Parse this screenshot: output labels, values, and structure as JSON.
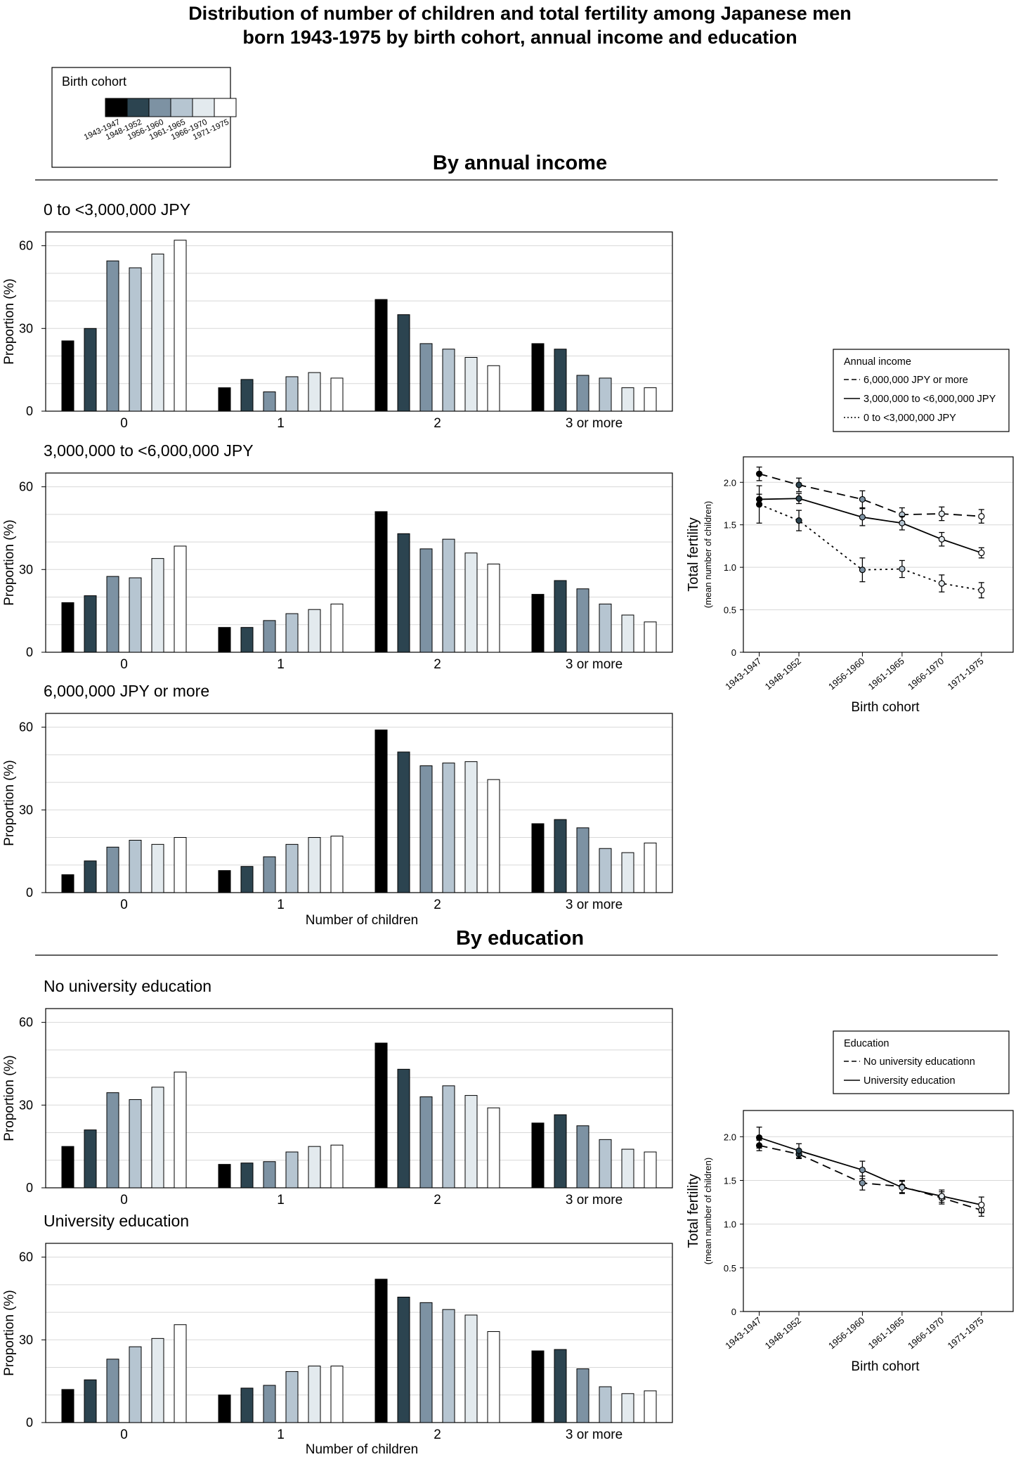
{
  "title_line1": "Distribution of number of children and total fertility among Japanese men",
  "title_line2": "born 1943-1975 by birth cohort, annual income and education",
  "legend": {
    "title": "Birth cohort",
    "cohorts": [
      "1943-1947",
      "1948-1952",
      "1956-1960",
      "1961-1965",
      "1966-1970",
      "1971-1975"
    ],
    "colors": [
      "#000000",
      "#2c4450",
      "#7d92a3",
      "#b6c5d1",
      "#e3eaee",
      "#ffffff"
    ]
  },
  "sections": {
    "income": "By annual income",
    "education": "By education"
  },
  "bar_panels": {
    "ylabel": "Proportion (%)",
    "xlabel": "Number of children",
    "yticks": [
      "0",
      "30",
      "60"
    ],
    "categories": [
      "0",
      "1",
      "2",
      "3 or more"
    ]
  },
  "line_panels": {
    "ylabel": "Total fertility",
    "ylabel_sub": "(mean number of children)",
    "xlabel": "Birth cohort",
    "yticks": [
      "0",
      "0.5",
      "1.0",
      "1.5",
      "2.0"
    ],
    "income_legend": {
      "title": "Annual income",
      "entries": [
        "6,000,000 JPY or more",
        "3,000,000 to <6,000,000 JPY",
        "0 to <3,000,000 JPY"
      ]
    },
    "education_legend": {
      "title": "Education",
      "entries": [
        "No university educationn",
        "University education"
      ]
    }
  },
  "chart_data": [
    {
      "type": "bar",
      "title": "0 to <3,000,000 JPY",
      "section": "By annual income",
      "categories": [
        "0",
        "1",
        "2",
        "3 or more"
      ],
      "ylim": [
        0,
        65
      ],
      "series": [
        {
          "name": "1943-1947",
          "values": [
            25.5,
            8.5,
            40.5,
            24.5
          ]
        },
        {
          "name": "1948-1952",
          "values": [
            30,
            11.5,
            35,
            22.5
          ]
        },
        {
          "name": "1956-1960",
          "values": [
            54.5,
            7,
            24.5,
            13
          ]
        },
        {
          "name": "1961-1965",
          "values": [
            52,
            12.5,
            22.5,
            12
          ]
        },
        {
          "name": "1966-1970",
          "values": [
            57,
            14,
            19.5,
            8.5
          ]
        },
        {
          "name": "1971-1975",
          "values": [
            62,
            12,
            16.5,
            8.5
          ]
        }
      ]
    },
    {
      "type": "bar",
      "title": "3,000,000 to <6,000,000 JPY",
      "section": "By annual income",
      "categories": [
        "0",
        "1",
        "2",
        "3 or more"
      ],
      "ylim": [
        0,
        65
      ],
      "series": [
        {
          "name": "1943-1947",
          "values": [
            18,
            9,
            51,
            21
          ]
        },
        {
          "name": "1948-1952",
          "values": [
            20.5,
            9,
            43,
            26
          ]
        },
        {
          "name": "1956-1960",
          "values": [
            27.5,
            11.5,
            37.5,
            23
          ]
        },
        {
          "name": "1961-1965",
          "values": [
            27,
            14,
            41,
            17.5
          ]
        },
        {
          "name": "1966-1970",
          "values": [
            34,
            15.5,
            36,
            13.5
          ]
        },
        {
          "name": "1971-1975",
          "values": [
            38.5,
            17.5,
            32,
            11
          ]
        }
      ]
    },
    {
      "type": "bar",
      "title": "6,000,000 JPY or more",
      "section": "By annual income",
      "categories": [
        "0",
        "1",
        "2",
        "3 or more"
      ],
      "ylim": [
        0,
        65
      ],
      "series": [
        {
          "name": "1943-1947",
          "values": [
            6.5,
            8,
            59,
            25
          ]
        },
        {
          "name": "1948-1952",
          "values": [
            11.5,
            9.5,
            51,
            26.5
          ]
        },
        {
          "name": "1956-1960",
          "values": [
            16.5,
            13,
            46,
            23.5
          ]
        },
        {
          "name": "1961-1965",
          "values": [
            19,
            17.5,
            47,
            16
          ]
        },
        {
          "name": "1966-1970",
          "values": [
            17.5,
            20,
            47.5,
            14.5
          ]
        },
        {
          "name": "1971-1975",
          "values": [
            20,
            20.5,
            41,
            18
          ]
        }
      ]
    },
    {
      "type": "bar",
      "title": "No university education",
      "section": "By education",
      "categories": [
        "0",
        "1",
        "2",
        "3 or more"
      ],
      "ylim": [
        0,
        65
      ],
      "series": [
        {
          "name": "1943-1947",
          "values": [
            15,
            8.5,
            52.5,
            23.5
          ]
        },
        {
          "name": "1948-1952",
          "values": [
            21,
            9,
            43,
            26.5
          ]
        },
        {
          "name": "1956-1960",
          "values": [
            34.5,
            9.5,
            33,
            22.5
          ]
        },
        {
          "name": "1961-1965",
          "values": [
            32,
            13,
            37,
            17.5
          ]
        },
        {
          "name": "1966-1970",
          "values": [
            36.5,
            15,
            33.5,
            14
          ]
        },
        {
          "name": "1971-1975",
          "values": [
            42,
            15.5,
            29,
            13
          ]
        }
      ]
    },
    {
      "type": "bar",
      "title": "University education",
      "section": "By education",
      "categories": [
        "0",
        "1",
        "2",
        "3 or more"
      ],
      "ylim": [
        0,
        65
      ],
      "series": [
        {
          "name": "1943-1947",
          "values": [
            12,
            10,
            52,
            26
          ]
        },
        {
          "name": "1948-1952",
          "values": [
            15.5,
            12.5,
            45.5,
            26.5
          ]
        },
        {
          "name": "1956-1960",
          "values": [
            23,
            13.5,
            43.5,
            19.5
          ]
        },
        {
          "name": "1961-1965",
          "values": [
            27.5,
            18.5,
            41,
            13
          ]
        },
        {
          "name": "1966-1970",
          "values": [
            30.5,
            20.5,
            39,
            10.5
          ]
        },
        {
          "name": "1971-1975",
          "values": [
            35.5,
            20.5,
            33,
            11.5
          ]
        }
      ]
    },
    {
      "type": "line",
      "section": "By annual income",
      "x": [
        "1943-1947",
        "1948-1952",
        "1956-1960",
        "1961-1965",
        "1966-1970",
        "1971-1975"
      ],
      "ylim": [
        0,
        2.3
      ],
      "series": [
        {
          "name": "6,000,000 JPY or more",
          "values": [
            2.1,
            1.97,
            1.8,
            1.62,
            1.63,
            1.6
          ],
          "errors": [
            0.08,
            0.08,
            0.1,
            0.08,
            0.08,
            0.08
          ]
        },
        {
          "name": "3,000,000 to <6,000,000 JPY",
          "values": [
            1.8,
            1.81,
            1.59,
            1.52,
            1.33,
            1.17
          ],
          "errors": [
            0.06,
            0.06,
            0.1,
            0.08,
            0.08,
            0.06
          ]
        },
        {
          "name": "0 to <3,000,000 JPY",
          "values": [
            1.74,
            1.55,
            0.97,
            0.98,
            0.81,
            0.73
          ],
          "errors": [
            0.22,
            0.12,
            0.14,
            0.1,
            0.1,
            0.09
          ]
        }
      ]
    },
    {
      "type": "line",
      "section": "By education",
      "x": [
        "1943-1947",
        "1948-1952",
        "1956-1960",
        "1961-1965",
        "1966-1970",
        "1971-1975"
      ],
      "ylim": [
        0,
        2.3
      ],
      "series": [
        {
          "name": "No university educationn",
          "values": [
            1.9,
            1.8,
            1.47,
            1.43,
            1.3,
            1.16
          ],
          "errors": [
            0.06,
            0.05,
            0.08,
            0.07,
            0.07,
            0.07
          ]
        },
        {
          "name": "University education",
          "values": [
            1.99,
            1.84,
            1.62,
            1.42,
            1.32,
            1.22
          ],
          "errors": [
            0.12,
            0.08,
            0.1,
            0.07,
            0.07,
            0.09
          ]
        }
      ]
    }
  ]
}
